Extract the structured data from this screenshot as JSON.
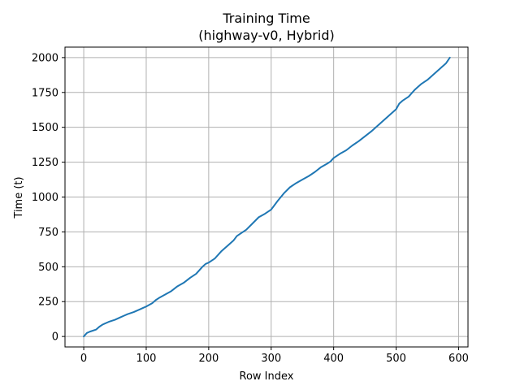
{
  "chart_data": {
    "type": "line",
    "title": "Training Time",
    "subtitle": "(highway-v0, Hybrid)",
    "xlabel": "Row Index",
    "ylabel": "Time (t)",
    "xlim": [
      -30,
      615
    ],
    "ylim": [
      -75,
      2075
    ],
    "xticks": [
      0,
      100,
      200,
      300,
      400,
      500,
      600
    ],
    "yticks": [
      0,
      250,
      500,
      750,
      1000,
      1250,
      1500,
      1750,
      2000
    ],
    "grid": true,
    "series": [
      {
        "color": "#1f77b4",
        "x": [
          0,
          5,
          10,
          20,
          25,
          30,
          40,
          50,
          60,
          65,
          70,
          80,
          90,
          95,
          100,
          110,
          115,
          120,
          130,
          140,
          150,
          160,
          170,
          180,
          190,
          195,
          200,
          210,
          220,
          230,
          240,
          245,
          250,
          260,
          270,
          280,
          290,
          300,
          310,
          320,
          330,
          340,
          350,
          360,
          370,
          380,
          390,
          395,
          400,
          410,
          420,
          430,
          440,
          450,
          460,
          470,
          480,
          490,
          500,
          505,
          510,
          520,
          530,
          535,
          540,
          550,
          560,
          570,
          580,
          586
        ],
        "y": [
          0,
          25,
          35,
          50,
          70,
          85,
          105,
          120,
          140,
          150,
          160,
          175,
          195,
          205,
          215,
          240,
          260,
          275,
          300,
          325,
          360,
          385,
          420,
          450,
          500,
          520,
          530,
          560,
          610,
          650,
          690,
          720,
          735,
          765,
          810,
          855,
          880,
          910,
          970,
          1025,
          1070,
          1100,
          1125,
          1150,
          1180,
          1215,
          1240,
          1255,
          1280,
          1310,
          1335,
          1370,
          1400,
          1435,
          1470,
          1510,
          1550,
          1590,
          1630,
          1670,
          1690,
          1720,
          1770,
          1790,
          1810,
          1840,
          1880,
          1920,
          1960,
          2000
        ]
      }
    ]
  }
}
